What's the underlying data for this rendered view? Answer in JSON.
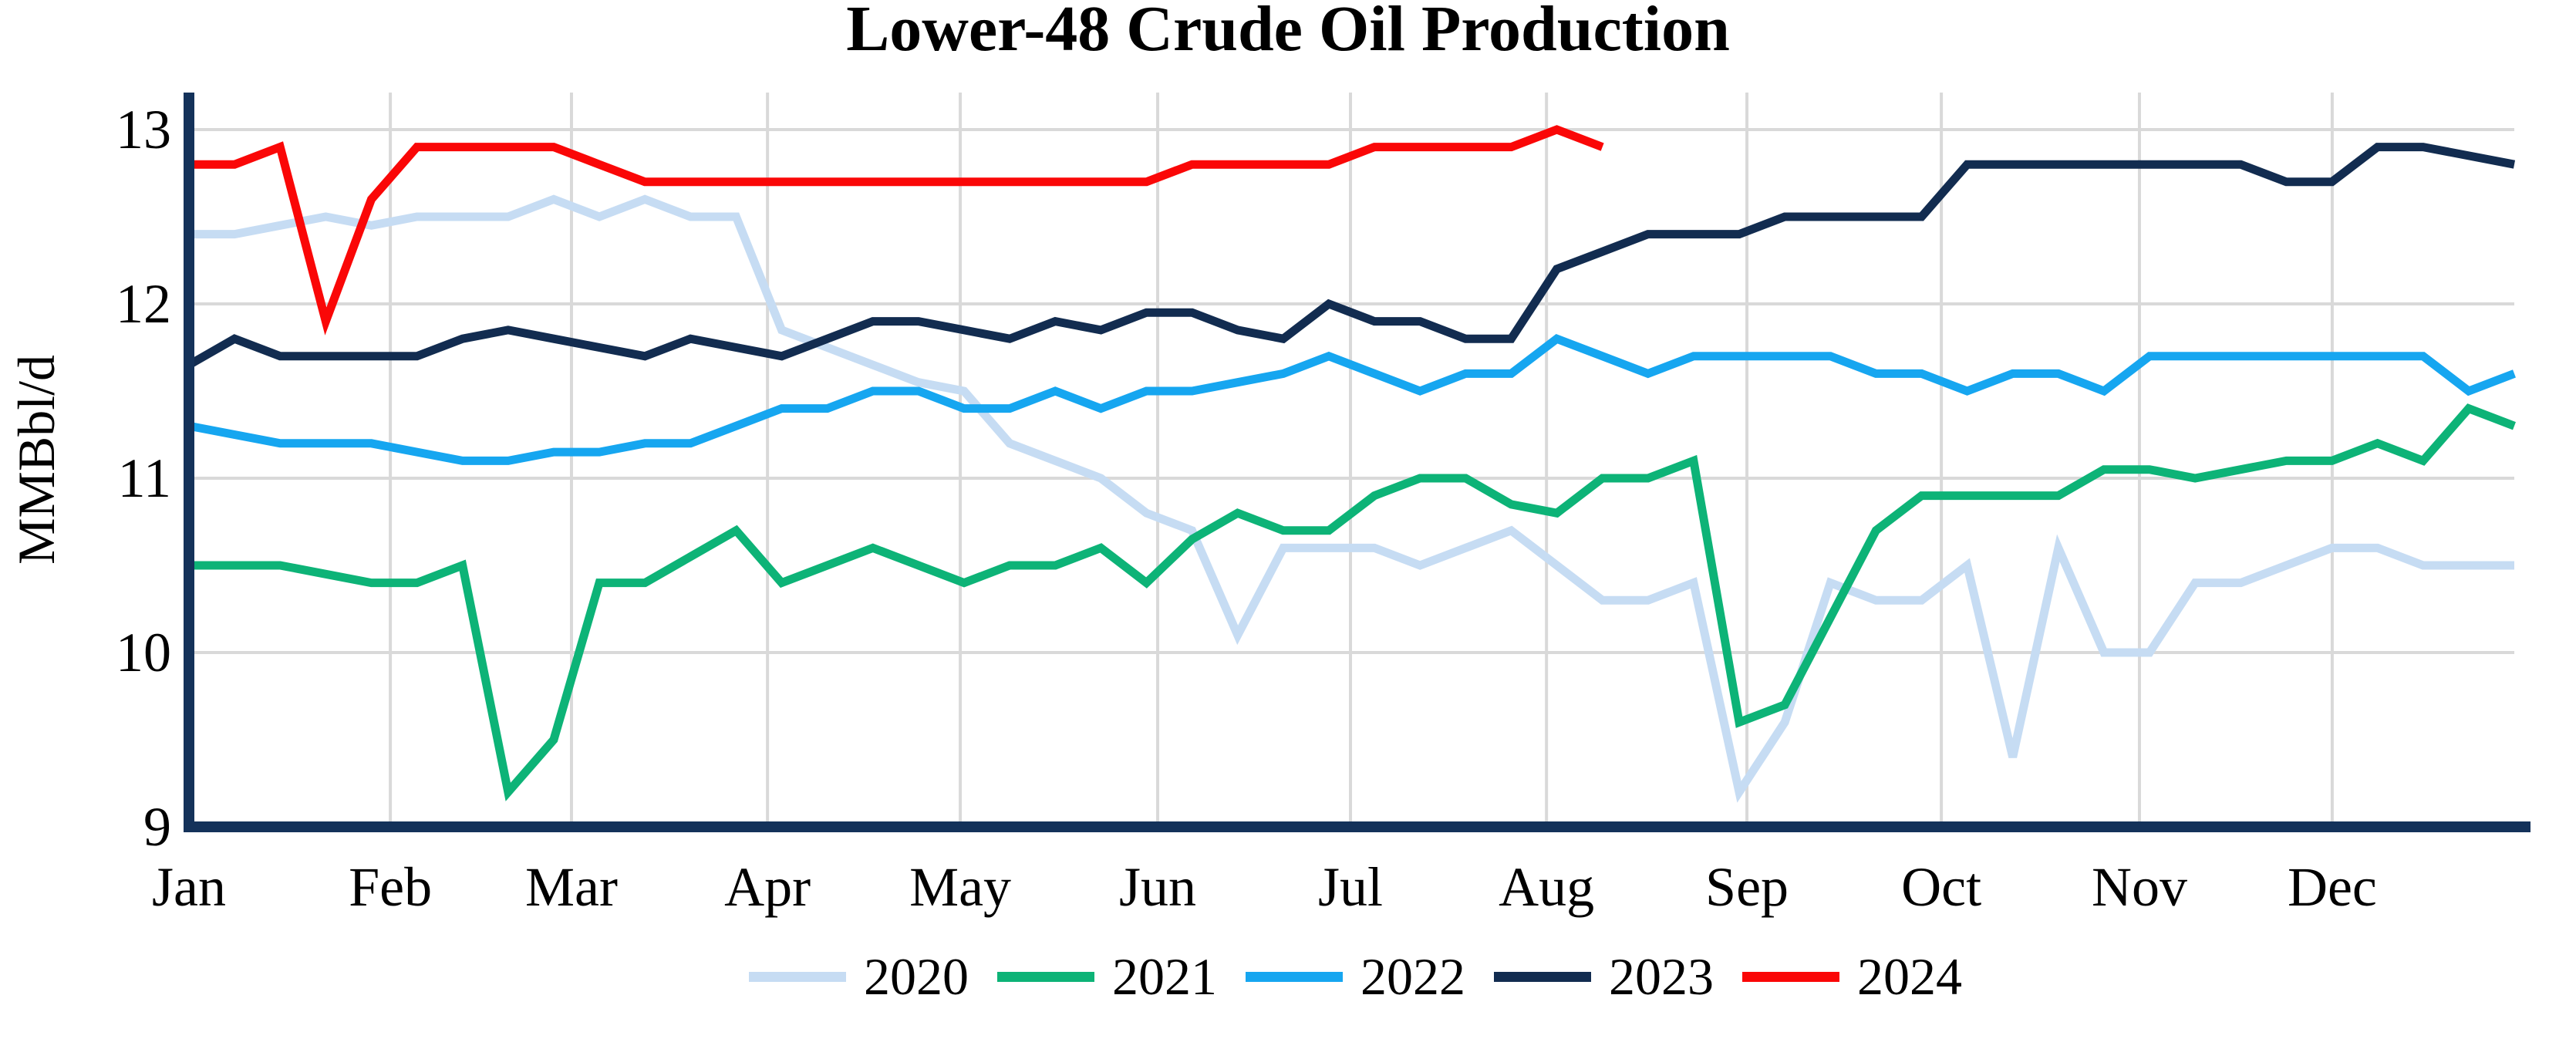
{
  "chart_data": {
    "type": "line",
    "title": "Lower-48 Crude Oil Production",
    "ylabel": "MMBbl/d",
    "xlabel": "",
    "x_unit": "week",
    "x_tick_labels": [
      "Jan",
      "Feb",
      "Mar",
      "Apr",
      "May",
      "Jun",
      "Jul",
      "Aug",
      "Sep",
      "Oct",
      "Nov",
      "Dec"
    ],
    "y_ticks": [
      9,
      10,
      11,
      12,
      13
    ],
    "ylim": [
      9,
      13.2
    ],
    "grid": true,
    "legend_position": "bottom",
    "colors": {
      "axis": "#14325a",
      "gridline": "#d9d9d9",
      "text": "#000000",
      "background": "#ffffff"
    },
    "series": [
      {
        "name": "2020",
        "color": "#c6dcf3",
        "values": [
          12.4,
          12.4,
          12.45,
          12.5,
          12.45,
          12.5,
          12.5,
          12.5,
          12.6,
          12.5,
          12.6,
          12.5,
          12.5,
          11.85,
          11.75,
          11.65,
          11.55,
          11.5,
          11.2,
          11.1,
          11.0,
          10.8,
          10.7,
          10.1,
          10.6,
          10.6,
          10.6,
          10.5,
          10.6,
          10.7,
          10.5,
          10.3,
          10.3,
          10.4,
          9.2,
          9.6,
          10.4,
          10.3,
          10.3,
          10.5,
          9.4,
          10.6,
          10.0,
          10.0,
          10.4,
          10.4,
          10.5,
          10.6,
          10.6,
          10.5,
          10.5,
          10.5
        ]
      },
      {
        "name": "2021",
        "color": "#0db377",
        "values": [
          10.5,
          10.5,
          10.5,
          10.45,
          10.4,
          10.4,
          10.5,
          9.2,
          9.5,
          10.4,
          10.4,
          10.55,
          10.7,
          10.4,
          10.5,
          10.6,
          10.5,
          10.4,
          10.5,
          10.5,
          10.6,
          10.4,
          10.65,
          10.8,
          10.7,
          10.7,
          10.9,
          11.0,
          11.0,
          10.85,
          10.8,
          11.0,
          11.0,
          11.1,
          9.6,
          9.7,
          10.2,
          10.7,
          10.9,
          10.9,
          10.9,
          10.9,
          11.05,
          11.05,
          11.0,
          11.05,
          11.1,
          11.1,
          11.2,
          11.1,
          11.4,
          11.3
        ]
      },
      {
        "name": "2022",
        "color": "#16a6f0",
        "values": [
          11.3,
          11.25,
          11.2,
          11.2,
          11.2,
          11.15,
          11.1,
          11.1,
          11.15,
          11.15,
          11.2,
          11.2,
          11.3,
          11.4,
          11.4,
          11.5,
          11.5,
          11.4,
          11.4,
          11.5,
          11.4,
          11.5,
          11.5,
          11.55,
          11.6,
          11.7,
          11.6,
          11.5,
          11.6,
          11.6,
          11.8,
          11.7,
          11.6,
          11.7,
          11.7,
          11.7,
          11.7,
          11.6,
          11.6,
          11.5,
          11.6,
          11.6,
          11.5,
          11.7,
          11.7,
          11.7,
          11.7,
          11.7,
          11.7,
          11.7,
          11.5,
          11.6
        ]
      },
      {
        "name": "2023",
        "color": "#122c50",
        "values": [
          11.65,
          11.8,
          11.7,
          11.7,
          11.7,
          11.7,
          11.8,
          11.85,
          11.8,
          11.75,
          11.7,
          11.8,
          11.75,
          11.7,
          11.8,
          11.9,
          11.9,
          11.85,
          11.8,
          11.9,
          11.85,
          11.95,
          11.95,
          11.85,
          11.8,
          12.0,
          11.9,
          11.9,
          11.8,
          11.8,
          12.2,
          12.3,
          12.4,
          12.4,
          12.4,
          12.5,
          12.5,
          12.5,
          12.5,
          12.8,
          12.8,
          12.8,
          12.8,
          12.8,
          12.8,
          12.8,
          12.7,
          12.7,
          12.9,
          12.9,
          12.85,
          12.8
        ]
      },
      {
        "name": "2024",
        "color": "#fa0707",
        "values": [
          12.8,
          12.8,
          12.9,
          11.9,
          12.6,
          12.9,
          12.9,
          12.9,
          12.9,
          12.8,
          12.7,
          12.7,
          12.7,
          12.7,
          12.7,
          12.7,
          12.7,
          12.7,
          12.7,
          12.7,
          12.7,
          12.7,
          12.8,
          12.8,
          12.8,
          12.8,
          12.9,
          12.9,
          12.9,
          12.9,
          13.0,
          12.9
        ]
      }
    ]
  }
}
